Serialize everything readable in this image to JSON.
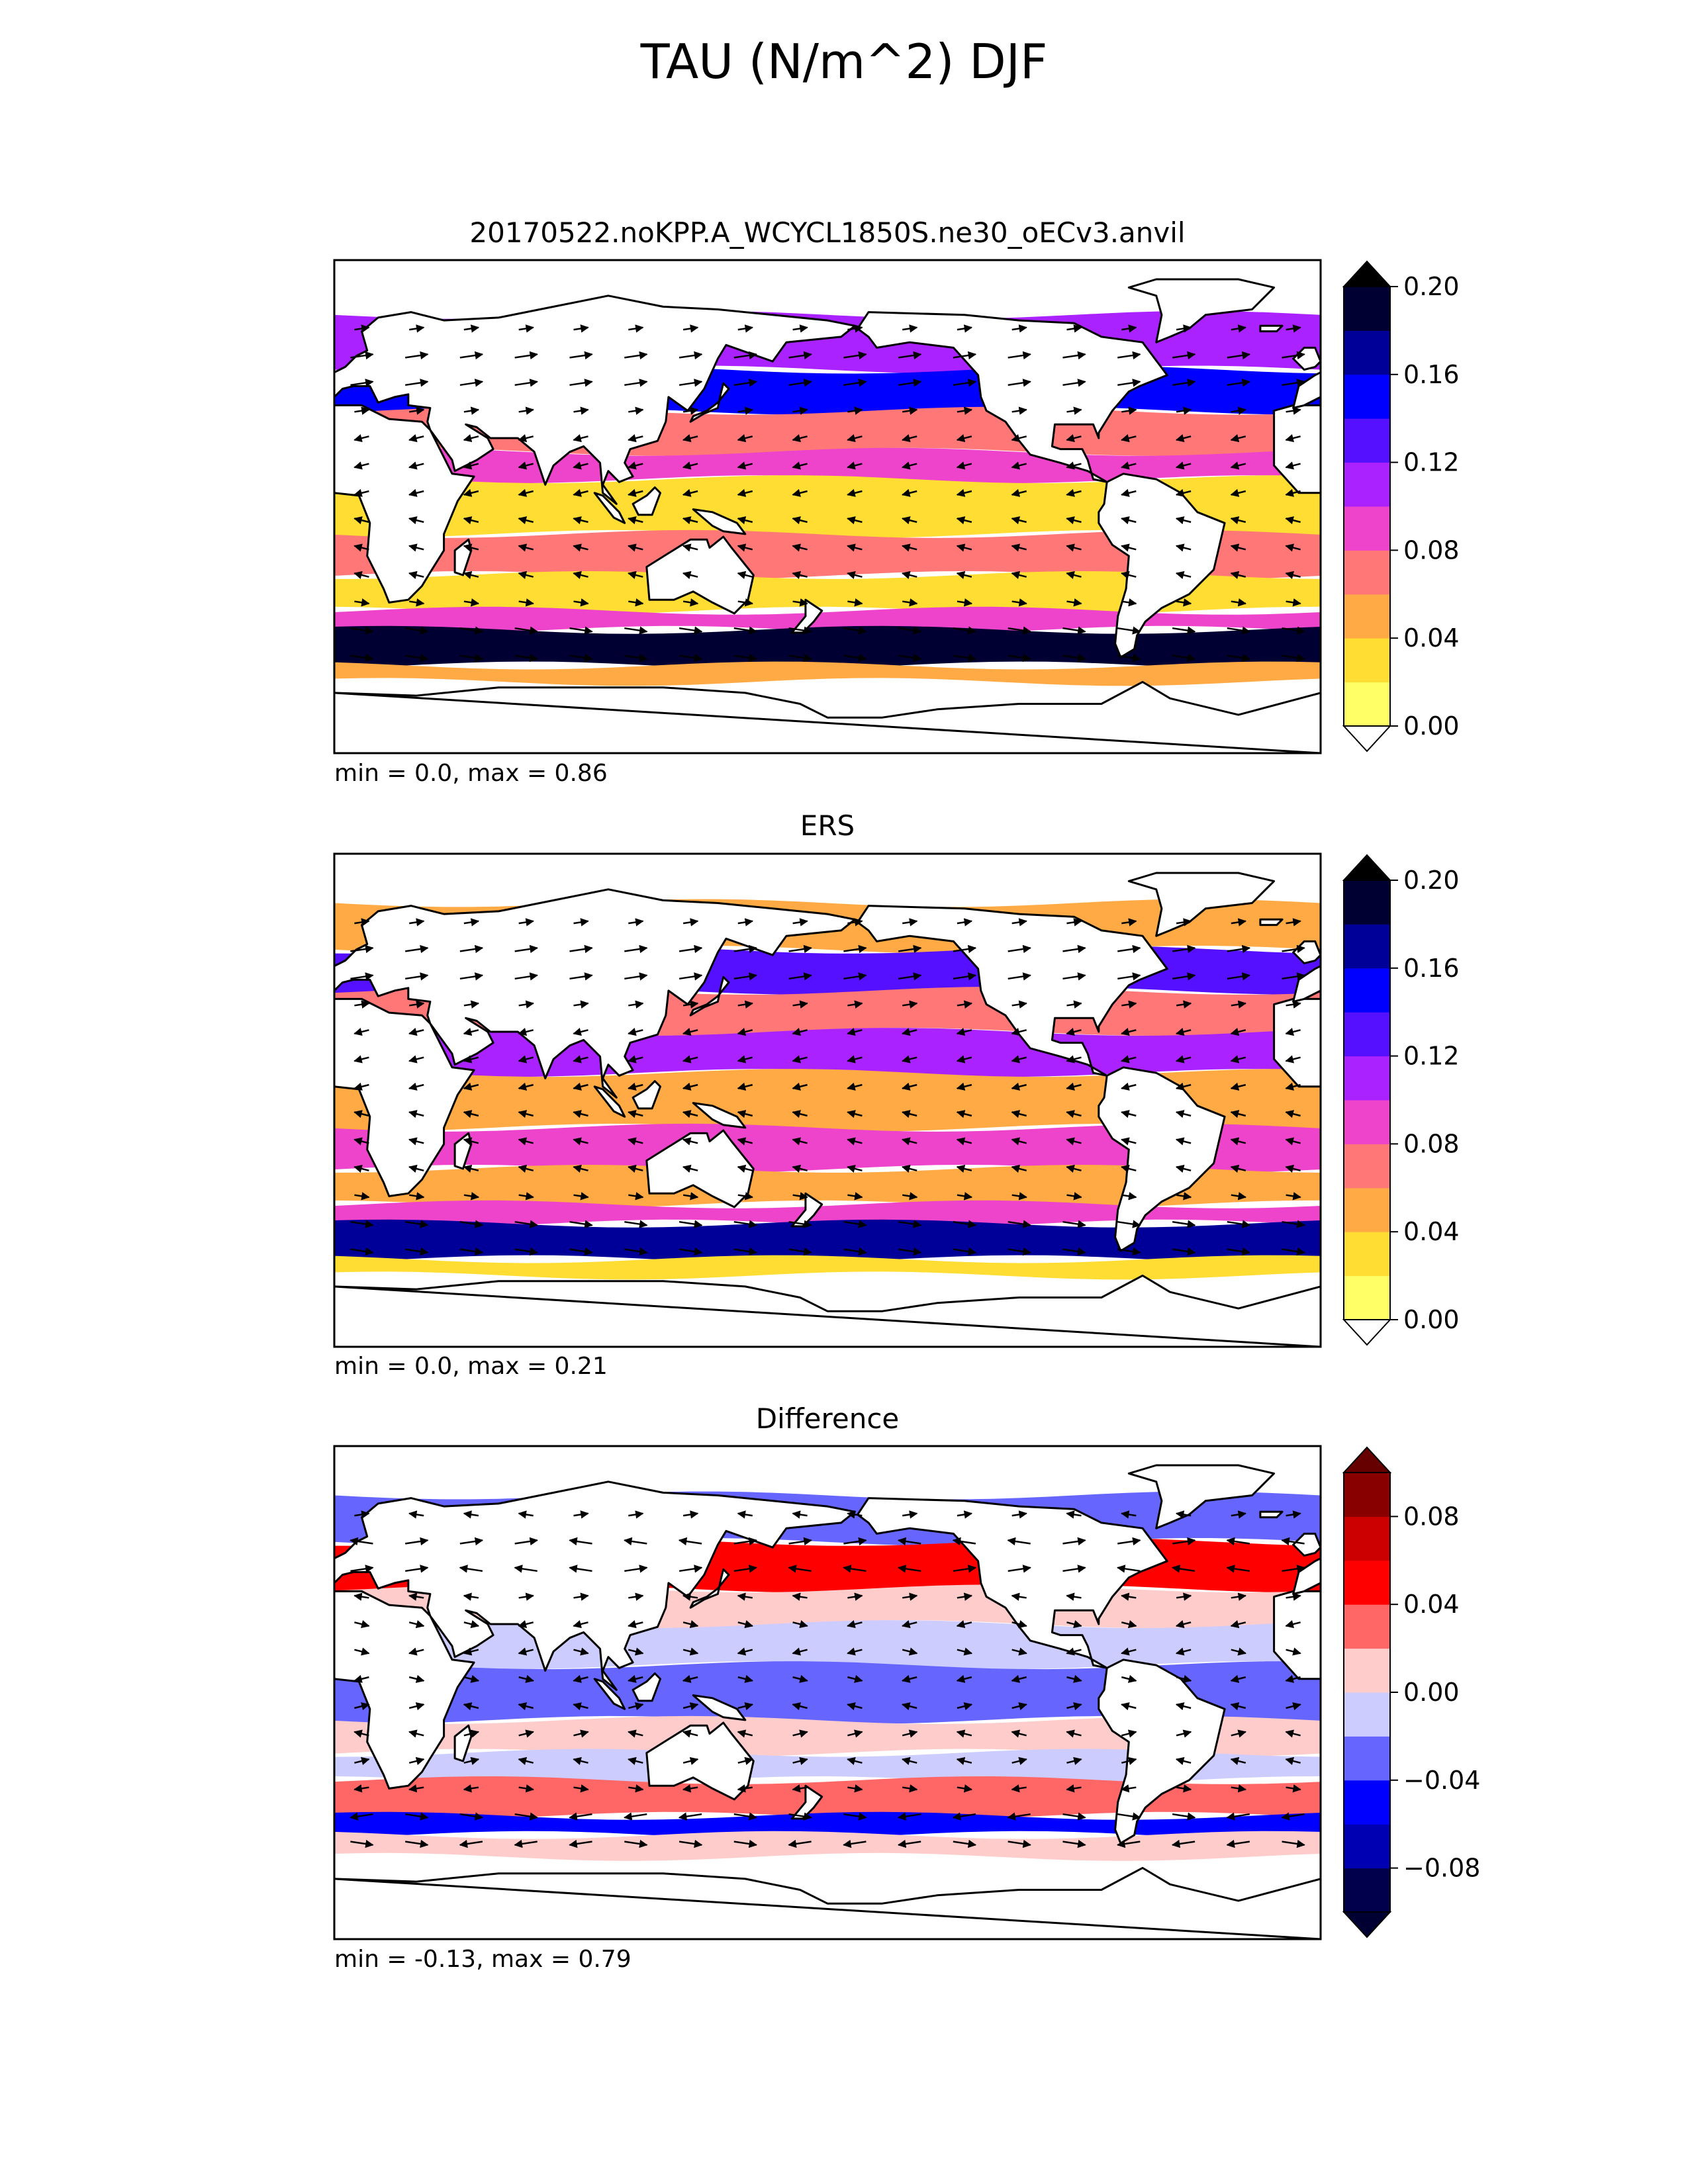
{
  "figure": {
    "title": "TAU (N/m^2) DJF"
  },
  "chart_data": [
    {
      "type": "heatmap",
      "subtitle": "20170522.noKPP.A_WCYCL1850S.ne30_oECv3.anvil",
      "stats": "min = 0.0, max = 0.86",
      "colorbar": {
        "levels": [
          0.0,
          0.02,
          0.04,
          0.06,
          0.08,
          0.1,
          0.12,
          0.14,
          0.16,
          0.18,
          0.2
        ],
        "colors": [
          "#ffff66",
          "#ffdd33",
          "#ffaa44",
          "#ff7777",
          "#ee44cc",
          "#aa22ff",
          "#5511ff",
          "#0000ff",
          "#000099",
          "#000033"
        ],
        "under_color": "#ffffff",
        "over_color": "#000000",
        "tick_values": [
          0.0,
          0.04,
          0.08,
          0.12,
          0.16,
          0.2
        ],
        "tick_labels": [
          "0.00",
          "0.04",
          "0.08",
          "0.12",
          "0.16",
          "0.20"
        ],
        "extend": "both"
      },
      "bands": [
        {
          "lat": [
            50,
            70
          ],
          "value": 0.11
        },
        {
          "lat": [
            35,
            50
          ],
          "value": 0.15
        },
        {
          "lat": [
            20,
            35
          ],
          "value": 0.07
        },
        {
          "lat": [
            10,
            20
          ],
          "value": 0.09
        },
        {
          "lat": [
            -10,
            10
          ],
          "value": 0.03
        },
        {
          "lat": [
            -25,
            -10
          ],
          "value": 0.07
        },
        {
          "lat": [
            -38,
            -25
          ],
          "value": 0.03
        },
        {
          "lat": [
            -45,
            -38
          ],
          "value": 0.09
        },
        {
          "lat": [
            -58,
            -45
          ],
          "value": 0.19
        },
        {
          "lat": [
            -64,
            -58
          ],
          "value": 0.05
        }
      ],
      "vectors": {
        "lon_step": 20,
        "lat_step": 10,
        "lon_start": 10,
        "lat_start": -55,
        "lat_end": 65
      }
    },
    {
      "type": "heatmap",
      "subtitle": "ERS",
      "stats": "min = 0.0, max = 0.21",
      "colorbar": {
        "levels": [
          0.0,
          0.02,
          0.04,
          0.06,
          0.08,
          0.1,
          0.12,
          0.14,
          0.16,
          0.18,
          0.2
        ],
        "colors": [
          "#ffff66",
          "#ffdd33",
          "#ffaa44",
          "#ff7777",
          "#ee44cc",
          "#aa22ff",
          "#5511ff",
          "#0000ff",
          "#000099",
          "#000033"
        ],
        "under_color": "#ffffff",
        "over_color": "#000000",
        "tick_values": [
          0.0,
          0.04,
          0.08,
          0.12,
          0.16,
          0.2
        ],
        "tick_labels": [
          "0.00",
          "0.04",
          "0.08",
          "0.12",
          "0.16",
          "0.20"
        ],
        "extend": "both"
      },
      "bands": [
        {
          "lat": [
            55,
            72
          ],
          "value": 0.05
        },
        {
          "lat": [
            40,
            55
          ],
          "value": 0.13
        },
        {
          "lat": [
            25,
            40
          ],
          "value": 0.07
        },
        {
          "lat": [
            10,
            25
          ],
          "value": 0.11
        },
        {
          "lat": [
            -10,
            10
          ],
          "value": 0.05
        },
        {
          "lat": [
            -25,
            -10
          ],
          "value": 0.09
        },
        {
          "lat": [
            -38,
            -25
          ],
          "value": 0.05
        },
        {
          "lat": [
            -45,
            -38
          ],
          "value": 0.09
        },
        {
          "lat": [
            -58,
            -45
          ],
          "value": 0.17
        },
        {
          "lat": [
            -64,
            -58
          ],
          "value": 0.03
        }
      ],
      "vectors": {
        "lon_step": 20,
        "lat_step": 10,
        "lon_start": 10,
        "lat_start": -55,
        "lat_end": 65
      }
    },
    {
      "type": "heatmap",
      "subtitle": "Difference",
      "stats": "min = -0.13, max = 0.79",
      "colorbar": {
        "levels": [
          -0.1,
          -0.08,
          -0.06,
          -0.04,
          -0.02,
          0.0,
          0.02,
          0.04,
          0.06,
          0.08,
          0.1
        ],
        "colors": [
          "#00004d",
          "#0000b3",
          "#0000ff",
          "#6666ff",
          "#ccccff",
          "#ffcccc",
          "#ff6666",
          "#ff0000",
          "#cc0000",
          "#880000"
        ],
        "under_color": "#000033",
        "over_color": "#660000",
        "tick_values": [
          -0.08,
          -0.04,
          0.0,
          0.04,
          0.08
        ],
        "tick_labels": [
          "−0.08",
          "−0.04",
          "0.00",
          "0.04",
          "0.08"
        ],
        "extend": "both"
      },
      "bands": [
        {
          "lat": [
            55,
            72
          ],
          "value": -0.03
        },
        {
          "lat": [
            38,
            55
          ],
          "value": 0.05
        },
        {
          "lat": [
            25,
            38
          ],
          "value": 0.01
        },
        {
          "lat": [
            10,
            25
          ],
          "value": -0.01
        },
        {
          "lat": [
            -10,
            10
          ],
          "value": -0.03
        },
        {
          "lat": [
            -22,
            -10
          ],
          "value": 0.01
        },
        {
          "lat": [
            -32,
            -22
          ],
          "value": -0.01
        },
        {
          "lat": [
            -45,
            -32
          ],
          "value": 0.03
        },
        {
          "lat": [
            -52,
            -45
          ],
          "value": -0.05
        },
        {
          "lat": [
            -60,
            -52
          ],
          "value": 0.01
        }
      ],
      "vectors": {
        "lon_step": 20,
        "lat_step": 10,
        "lon_start": 10,
        "lat_start": -55,
        "lat_end": 65
      }
    }
  ]
}
